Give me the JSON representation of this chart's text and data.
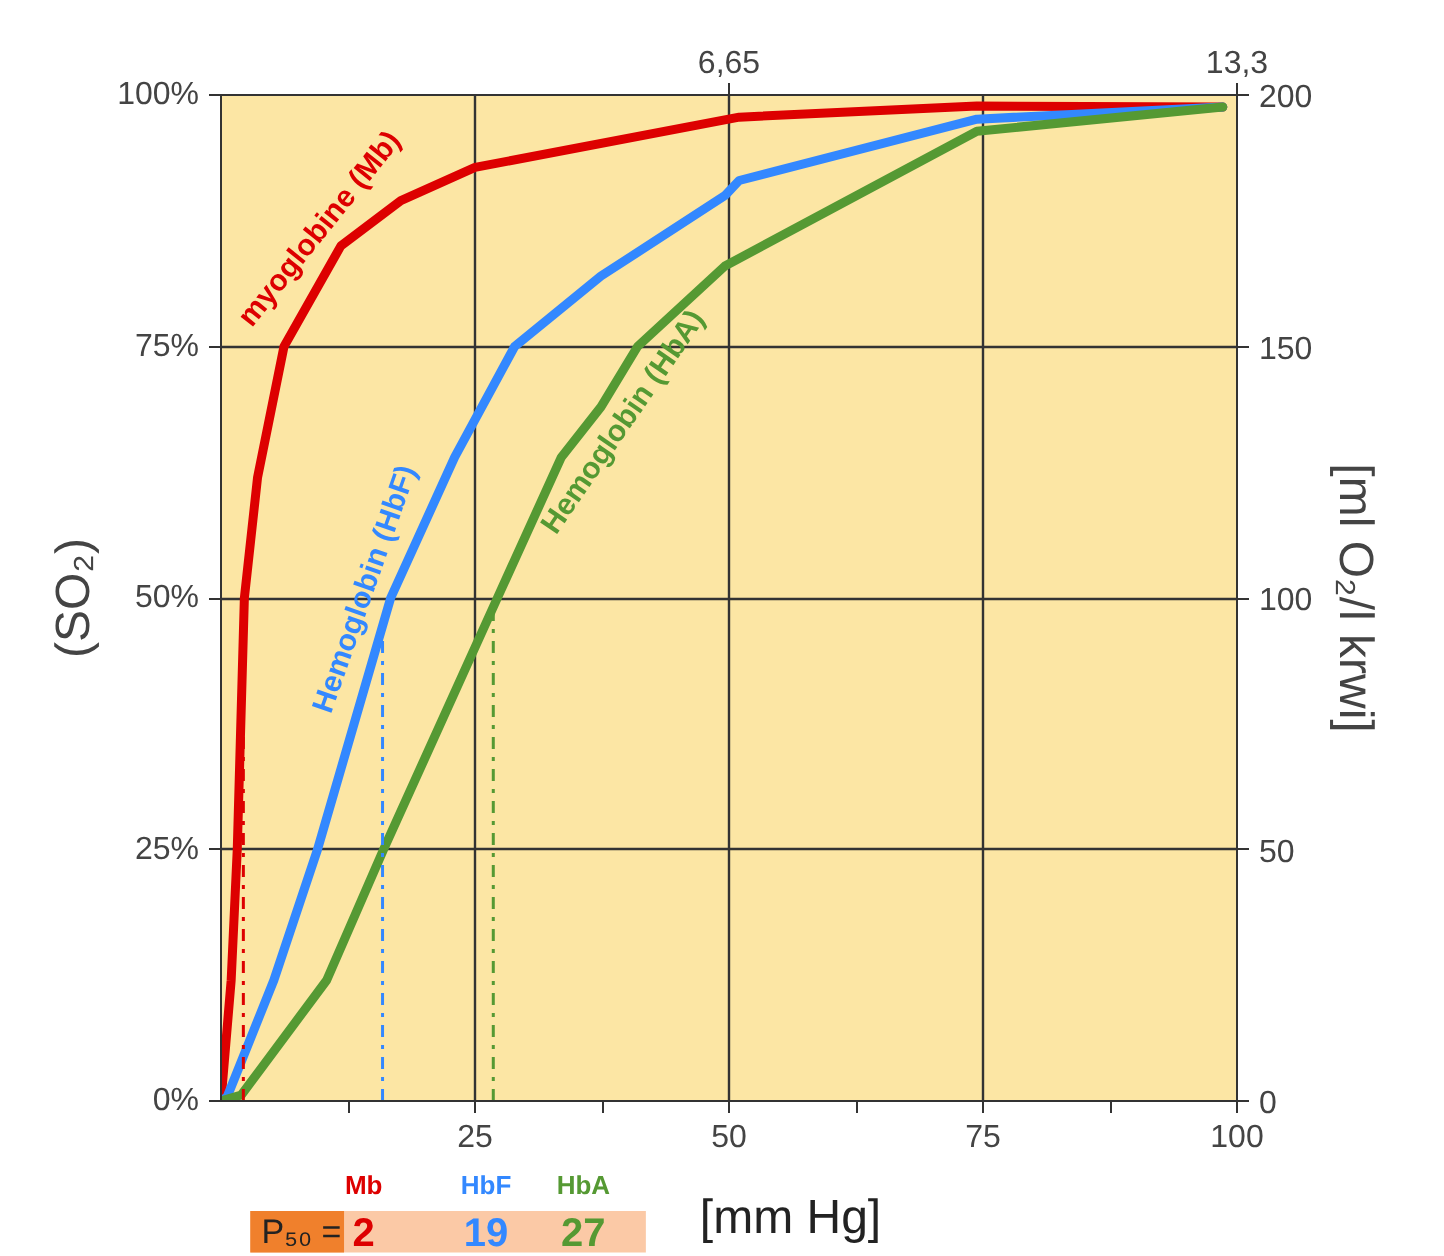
{
  "chart_data": {
    "type": "line",
    "xlabel": "[mm Hg]",
    "ylabel": "(SO₂)",
    "y2label": "[ml O₂/l krwi]",
    "xlim": [
      0,
      100
    ],
    "ylim": [
      0,
      100
    ],
    "y2lim": [
      0,
      200
    ],
    "x2lim": [
      0,
      13.3
    ],
    "xticks": [
      {
        "value": 12.5,
        "label": null
      },
      25,
      {
        "value": 37.5,
        "label": null
      },
      50,
      {
        "value": 62.5,
        "label": null
      },
      75,
      {
        "value": 87.5,
        "label": null
      },
      100
    ],
    "yticks": [
      {
        "value": 0,
        "label": "0%"
      },
      {
        "value": 25,
        "label": "25%"
      },
      {
        "value": 50,
        "label": "50%"
      },
      {
        "value": 75,
        "label": "75%"
      },
      {
        "value": 100,
        "label": "100%"
      }
    ],
    "y2ticks": [
      0,
      50,
      100,
      150,
      200
    ],
    "x2ticks": [
      {
        "value": 6.65,
        "label": "6,65"
      },
      {
        "value": 13.3,
        "label": "13,3"
      }
    ],
    "grid": true,
    "legend": false,
    "marker": "none",
    "line_style": "solid",
    "series": [
      {
        "name": "myoglobine (Mb)",
        "color": "#dd0000",
        "x": [
          0,
          1,
          1.6,
          2.3,
          3.6,
          6.2,
          11.8,
          17.7,
          25,
          51,
          74.4,
          98.6
        ],
        "values": [
          0,
          12,
          25,
          50,
          62,
          75,
          85,
          89.5,
          92.8,
          97.8,
          98.9,
          98.8
        ]
      },
      {
        "name": "Hemoglobin (HbF)",
        "color": "#3388ff",
        "x": [
          0,
          0.6,
          5.2,
          9.5,
          16.7,
          23,
          28.9,
          37.4,
          49.6,
          51,
          74.4,
          98.6
        ],
        "values": [
          0,
          0.4,
          12,
          25,
          50,
          64,
          75,
          82,
          90,
          91.5,
          97.6,
          98.8
        ]
      },
      {
        "name": "Hemoglobin (HbA)",
        "color": "#559933",
        "x": [
          0,
          2,
          10.4,
          16,
          27.2,
          33.5,
          37.4,
          41,
          49.6,
          74.4,
          98.6
        ],
        "values": [
          0,
          0.6,
          12,
          25,
          50,
          64,
          69,
          75,
          83,
          96.4,
          98.8
        ]
      }
    ],
    "ref_lines": [
      {
        "axis": "x",
        "value": 2.2,
        "label": "Mb",
        "color": "#dd0000",
        "line_style": "dashdot"
      },
      {
        "axis": "x",
        "value": 15.9,
        "label": "HbF",
        "color": "#3388ff",
        "line_style": "dashdot"
      },
      {
        "axis": "x",
        "value": 26.8,
        "label": "HbA",
        "color": "#559933",
        "line_style": "dashdot"
      }
    ],
    "annotations": [
      "P₅₀ =",
      "2",
      "19",
      "27"
    ]
  }
}
